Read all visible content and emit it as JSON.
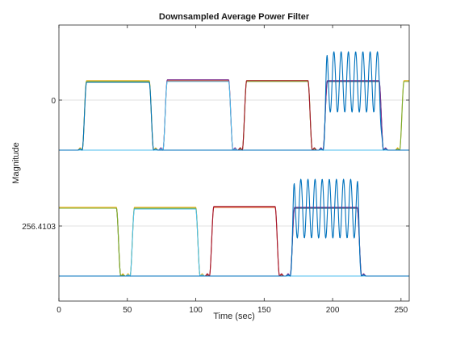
{
  "chart_data": {
    "type": "line",
    "title": "Downsampled Average Power Filter",
    "xlabel": "Time (sec)",
    "ylabel": "Magnitude",
    "xlim": [
      0,
      256
    ],
    "x_ticks": [
      "0",
      "50",
      "100",
      "150",
      "200",
      "250"
    ],
    "y_ticks": [
      {
        "label": "0",
        "panel": "upper"
      },
      {
        "label": "256.4103",
        "panel": "lower"
      }
    ],
    "grid": true,
    "legend": "none",
    "colors": {
      "blue": "#0072BD",
      "orange": "#D95319",
      "yellow": "#EDB120",
      "purple": "#7E2F8E",
      "green": "#77AC30",
      "cyan": "#4DBEEE",
      "red": "#A2142F",
      "dark": "#1f3b5a"
    },
    "upper_panel": {
      "baseline": "flat at the bottom of the upper trace, about 62 units below the 0 gridline",
      "pulses": [
        {
          "start": 17,
          "end": 66,
          "level": 23,
          "traces": [
            "blue",
            "yellow",
            "green"
          ]
        },
        {
          "start": 76,
          "end": 124,
          "level": 24,
          "traces": [
            "orange",
            "purple",
            "cyan"
          ]
        },
        {
          "start": 134,
          "end": 182,
          "level": 23,
          "traces": [
            "green",
            "red",
            "yellow"
          ]
        },
        {
          "start": 193,
          "end": 234,
          "level": 23,
          "traces": [
            "dark",
            "purple",
            "blue"
          ],
          "oscillating": true,
          "osc_period": 5.3,
          "osc_low": -15,
          "osc_high": 60
        },
        {
          "start": 249,
          "end": 256,
          "level": 23,
          "traces": [
            "green",
            "yellow"
          ],
          "truncated": true
        }
      ]
    },
    "lower_panel": {
      "baseline": "flat at the bottom of the lower trace, about 62 units below the 256.4103 gridline",
      "pulses": [
        {
          "start": 0,
          "end": 42,
          "level": 22,
          "traces": [
            "yellow",
            "green",
            "dark"
          ],
          "starts_high": true
        },
        {
          "start": 52,
          "end": 100,
          "level": 22,
          "traces": [
            "green",
            "yellow",
            "cyan"
          ]
        },
        {
          "start": 110,
          "end": 158,
          "level": 23,
          "traces": [
            "orange",
            "red"
          ]
        },
        {
          "start": 169,
          "end": 218,
          "level": 22,
          "traces": [
            "dark",
            "purple",
            "blue"
          ],
          "oscillating": true,
          "osc_period": 5.2,
          "osc_low": -15,
          "osc_high": 58
        }
      ]
    }
  }
}
